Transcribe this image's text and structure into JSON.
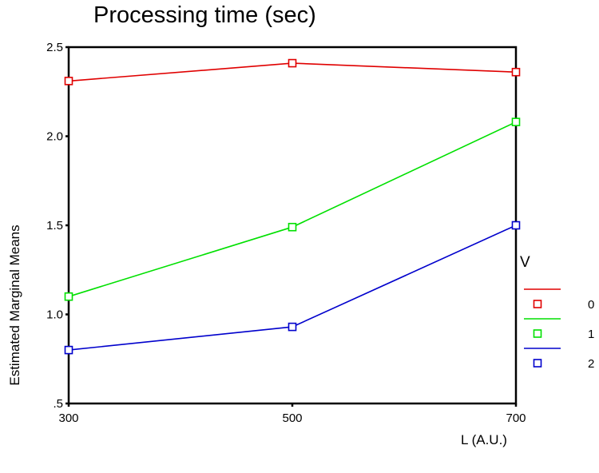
{
  "chart_data": {
    "type": "line",
    "title": "Processing time (sec)",
    "xlabel": "L (A.U.)",
    "ylabel": "Estimated Marginal Means",
    "x": [
      300,
      500,
      700
    ],
    "x_tick_labels": [
      "300",
      "500",
      "700"
    ],
    "ylim": [
      0.5,
      2.5
    ],
    "y_ticks": [
      0.5,
      1.0,
      1.5,
      2.0,
      2.5
    ],
    "y_tick_labels": [
      ".5",
      "1.0",
      "1.5",
      "2.0",
      "2.5"
    ],
    "grid": false,
    "legend_title": "V",
    "legend_position": "right",
    "series": [
      {
        "name": "0",
        "color": "#e00000",
        "values": [
          2.31,
          2.41,
          2.36
        ]
      },
      {
        "name": "1",
        "color": "#00e000",
        "values": [
          1.1,
          1.49,
          2.08
        ]
      },
      {
        "name": "2",
        "color": "#0000cc",
        "values": [
          0.8,
          0.93,
          1.5
        ]
      }
    ]
  }
}
